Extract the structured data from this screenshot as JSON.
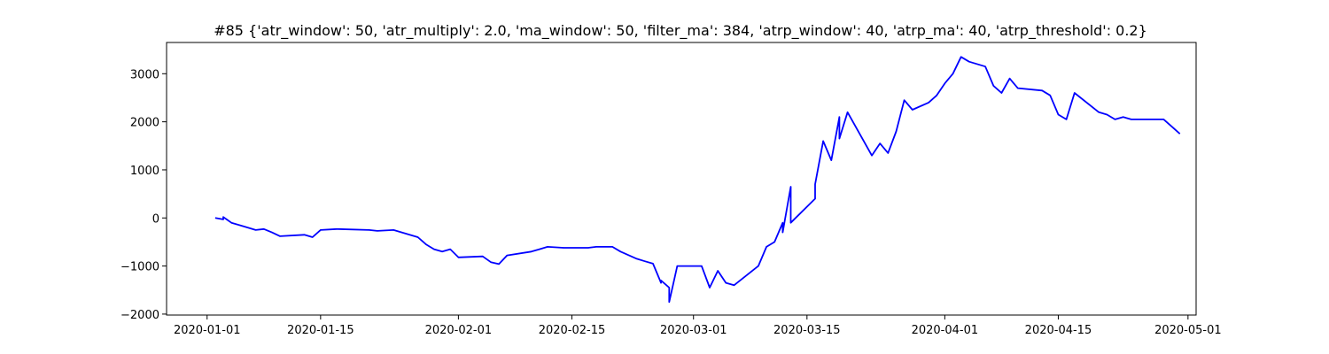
{
  "chart_data": {
    "type": "line",
    "title": "#85 {'atr_window': 50, 'atr_multiply': 2.0, 'ma_window': 50, 'filter_ma': 384, 'atrp_window': 40, 'atrp_ma': 40, 'atrp_threshold': 0.2}",
    "xlabel": "",
    "ylabel": "",
    "xlim": [
      "2019-12-27",
      "2020-05-02"
    ],
    "ylim": [
      -2020,
      3650
    ],
    "x_ticks": [
      "2020-01-01",
      "2020-01-15",
      "2020-02-01",
      "2020-02-15",
      "2020-03-01",
      "2020-03-15",
      "2020-04-01",
      "2020-04-15",
      "2020-05-01"
    ],
    "y_ticks": [
      -2000,
      -1000,
      0,
      1000,
      2000,
      3000
    ],
    "y_tick_labels": [
      "−2000",
      "−1000",
      "0",
      "1000",
      "2000",
      "3000"
    ],
    "grid": false,
    "line_color": "#0000ff",
    "series": [
      {
        "x": [
          "2020-01-02",
          "2020-01-03",
          "2020-01-03",
          "2020-01-04",
          "2020-01-06",
          "2020-01-07",
          "2020-01-08",
          "2020-01-09",
          "2020-01-10",
          "2020-01-13",
          "2020-01-14",
          "2020-01-15",
          "2020-01-17",
          "2020-01-21",
          "2020-01-22",
          "2020-01-24",
          "2020-01-27",
          "2020-01-28",
          "2020-01-29",
          "2020-01-30",
          "2020-01-31",
          "2020-02-01",
          "2020-02-04",
          "2020-02-05",
          "2020-02-06",
          "2020-02-07",
          "2020-02-10",
          "2020-02-11",
          "2020-02-12",
          "2020-02-14",
          "2020-02-17",
          "2020-02-18",
          "2020-02-20",
          "2020-02-21",
          "2020-02-23",
          "2020-02-24",
          "2020-02-25",
          "2020-02-26",
          "2020-02-26",
          "2020-02-27",
          "2020-02-27",
          "2020-02-28",
          "2020-03-02",
          "2020-03-03",
          "2020-03-04",
          "2020-03-05",
          "2020-03-06",
          "2020-03-09",
          "2020-03-10",
          "2020-03-11",
          "2020-03-12",
          "2020-03-12",
          "2020-03-13",
          "2020-03-13",
          "2020-03-16",
          "2020-03-16",
          "2020-03-17",
          "2020-03-18",
          "2020-03-19",
          "2020-03-19",
          "2020-03-20",
          "2020-03-22",
          "2020-03-23",
          "2020-03-24",
          "2020-03-25",
          "2020-03-26",
          "2020-03-27",
          "2020-03-28",
          "2020-03-30",
          "2020-03-31",
          "2020-04-01",
          "2020-04-02",
          "2020-04-03",
          "2020-04-04",
          "2020-04-06",
          "2020-04-07",
          "2020-04-08",
          "2020-04-09",
          "2020-04-10",
          "2020-04-13",
          "2020-04-14",
          "2020-04-15",
          "2020-04-16",
          "2020-04-17",
          "2020-04-20",
          "2020-04-21",
          "2020-04-22",
          "2020-04-23",
          "2020-04-24",
          "2020-04-27",
          "2020-04-28",
          "2020-04-29",
          "2020-04-30"
        ],
        "y": [
          0,
          -30,
          20,
          -100,
          -200,
          -250,
          -230,
          -300,
          -380,
          -350,
          -400,
          -250,
          -230,
          -250,
          -270,
          -250,
          -400,
          -550,
          -650,
          -700,
          -650,
          -820,
          -800,
          -920,
          -960,
          -780,
          -700,
          -650,
          -600,
          -620,
          -620,
          -600,
          -600,
          -700,
          -850,
          -900,
          -950,
          -1350,
          -1300,
          -1450,
          -1750,
          -1000,
          -1000,
          -1450,
          -1100,
          -1350,
          -1400,
          -1000,
          -600,
          -500,
          -100,
          -300,
          650,
          -100,
          400,
          700,
          1600,
          1200,
          2100,
          1650,
          2200,
          1600,
          1300,
          1550,
          1350,
          1800,
          2450,
          2250,
          2400,
          2550,
          2800,
          3000,
          3350,
          3250,
          3150,
          2750,
          2600,
          2900,
          2700,
          2650,
          2550,
          2150,
          2050,
          2600,
          2200,
          2150,
          2050,
          2100,
          2050,
          2050,
          2050,
          1900,
          1750
        ]
      }
    ]
  }
}
